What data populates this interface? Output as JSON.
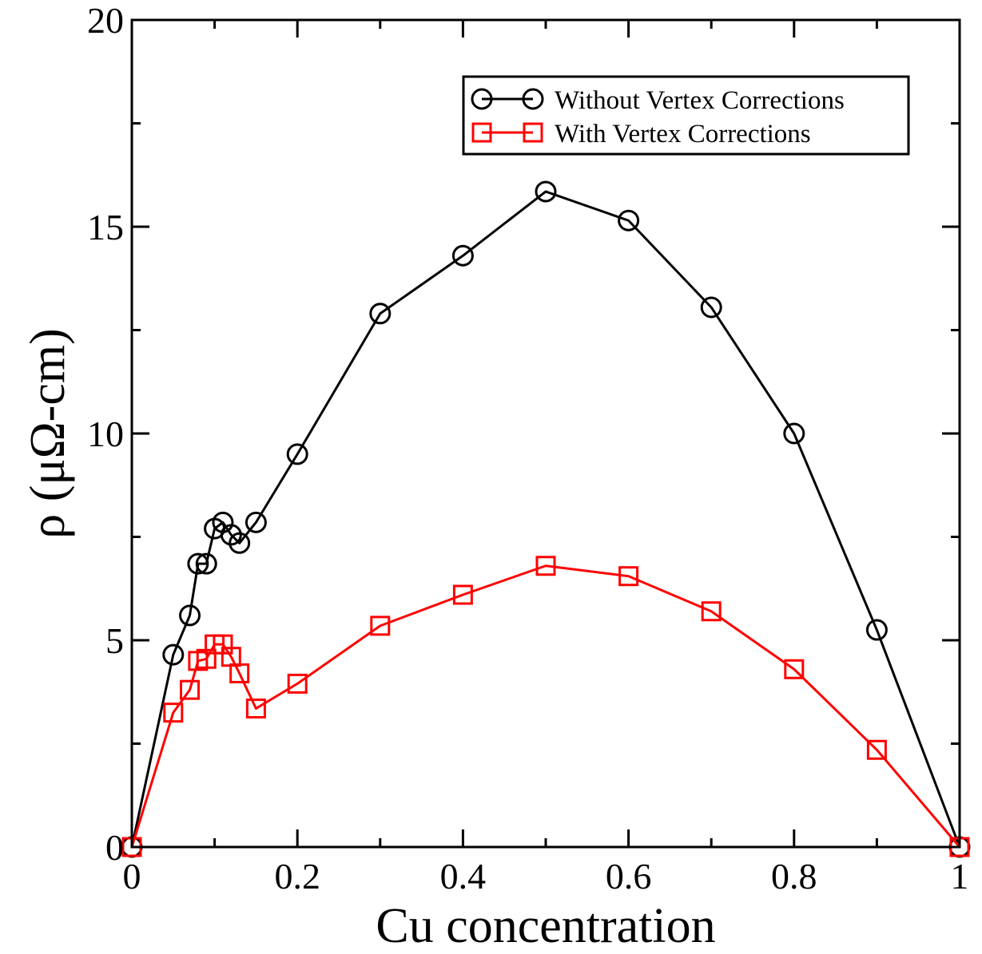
{
  "chart_data": {
    "type": "line",
    "title": "",
    "xlabel": "Cu concentration",
    "ylabel": "ρ (μΩ-cm)",
    "xlim": [
      0,
      1
    ],
    "ylim": [
      0,
      20
    ],
    "x_ticks": [
      0,
      0.2,
      0.4,
      0.6,
      0.8,
      1
    ],
    "x_tick_labels": [
      "0",
      "0.2",
      "0.4",
      "0.6",
      "0.8",
      "1"
    ],
    "y_ticks": [
      0,
      5,
      10,
      15,
      20
    ],
    "y_tick_labels": [
      "0",
      "5",
      "10",
      "15",
      "20"
    ],
    "grid": false,
    "legend_position": "top-right",
    "series": [
      {
        "name": "Without Vertex Corrections",
        "color": "#000000",
        "marker": "circle",
        "points": [
          [
            0,
            0
          ],
          [
            0.05,
            4.65
          ],
          [
            0.07,
            5.6
          ],
          [
            0.08,
            6.85
          ],
          [
            0.09,
            6.85
          ],
          [
            0.1,
            7.7
          ],
          [
            0.11,
            7.85
          ],
          [
            0.12,
            7.55
          ],
          [
            0.13,
            7.35
          ],
          [
            0.15,
            7.85
          ],
          [
            0.2,
            9.5
          ],
          [
            0.3,
            12.9
          ],
          [
            0.4,
            14.3
          ],
          [
            0.5,
            15.85
          ],
          [
            0.6,
            15.15
          ],
          [
            0.7,
            13.05
          ],
          [
            0.8,
            10.0
          ],
          [
            0.9,
            5.25
          ],
          [
            1.0,
            0
          ]
        ]
      },
      {
        "name": "With Vertex Corrections",
        "color": "#ff0000",
        "marker": "square",
        "points": [
          [
            0,
            0
          ],
          [
            0.05,
            3.25
          ],
          [
            0.07,
            3.8
          ],
          [
            0.08,
            4.5
          ],
          [
            0.09,
            4.55
          ],
          [
            0.1,
            4.9
          ],
          [
            0.11,
            4.9
          ],
          [
            0.12,
            4.6
          ],
          [
            0.13,
            4.2
          ],
          [
            0.15,
            3.35
          ],
          [
            0.2,
            3.95
          ],
          [
            0.3,
            5.35
          ],
          [
            0.4,
            6.1
          ],
          [
            0.5,
            6.8
          ],
          [
            0.6,
            6.55
          ],
          [
            0.7,
            5.7
          ],
          [
            0.8,
            4.3
          ],
          [
            0.9,
            2.35
          ],
          [
            1.0,
            0
          ]
        ]
      }
    ]
  }
}
